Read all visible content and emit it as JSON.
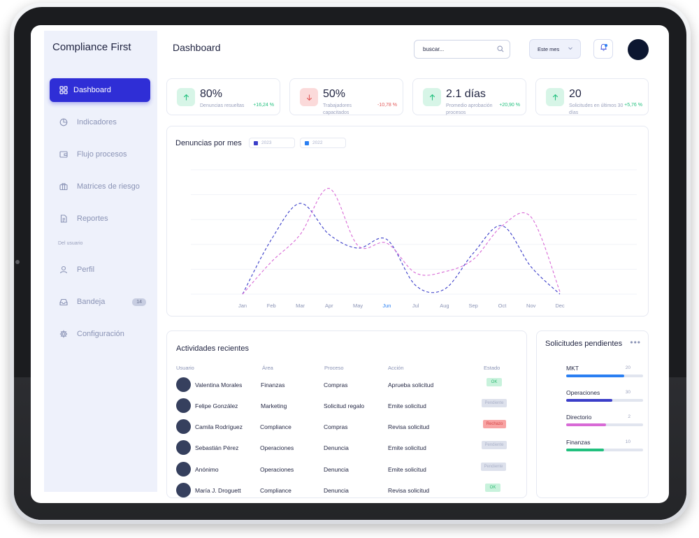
{
  "brand": "Compliance First",
  "colors": {
    "accent": "#2f2ed6",
    "series_2023": "#3b3ec9",
    "series_2022": "#d86ad6",
    "positive": "#22c07e",
    "negative": "#e25a5a"
  },
  "sidebar": {
    "items": [
      {
        "label": "Dashboard",
        "icon": "grid-icon"
      },
      {
        "label": "Indicadores",
        "icon": "pie-chart-icon"
      },
      {
        "label": "Flujo procesos",
        "icon": "wallet-icon"
      },
      {
        "label": "Matrices de riesgo",
        "icon": "briefcase-icon"
      },
      {
        "label": "Reportes",
        "icon": "document-icon"
      }
    ],
    "section_label": "Del usuario",
    "user_items": [
      {
        "label": "Perfil",
        "icon": "user-icon"
      },
      {
        "label": "Bandeja",
        "icon": "inbox-icon",
        "badge": "14"
      },
      {
        "label": "Configuración",
        "icon": "gear-icon"
      }
    ]
  },
  "header": {
    "title": "Dashboard",
    "search_placeholder": "buscar...",
    "period": "Este mes"
  },
  "stats": [
    {
      "value": "80%",
      "label": "Denuncias resueltas",
      "delta": "+16,24 %",
      "trend": "up"
    },
    {
      "value": "50%",
      "label": "Trabajadores capacitados",
      "delta": "-10,78 %",
      "trend": "down"
    },
    {
      "value": "2.1 días",
      "label": "Promedio aprobación procesos",
      "delta": "+20,90 %",
      "trend": "up"
    },
    {
      "value": "20",
      "label": "Solicitudes en últimos 30 días",
      "delta": "+5,76 %",
      "trend": "up"
    }
  ],
  "chart_data": {
    "type": "line",
    "title": "Denuncias por mes",
    "categories": [
      "Jan",
      "Feb",
      "Mar",
      "Apr",
      "May",
      "Jun",
      "Jul",
      "Aug",
      "Sep",
      "Oct",
      "Nov",
      "Dec"
    ],
    "highlight_category": "Jun",
    "series": [
      {
        "name": "2023",
        "values": [
          0,
          44,
          73,
          48,
          37,
          44,
          7,
          4,
          33,
          55,
          22,
          0
        ]
      },
      {
        "name": "2022",
        "values": [
          0,
          26,
          48,
          85,
          39,
          41,
          17,
          18,
          28,
          55,
          62,
          2
        ]
      }
    ],
    "grid": true,
    "legend": "top-left"
  },
  "activities": {
    "title": "Actividades recientes",
    "columns": [
      "Usuario",
      "Área",
      "Proceso",
      "Acción",
      "Estado"
    ],
    "rows": [
      {
        "user": "Valentina Morales",
        "area": "Finanzas",
        "process": "Compras",
        "action": "Aprueba solicitud",
        "status": "OK",
        "status_type": "ok"
      },
      {
        "user": "Felipe González",
        "area": "Marketing",
        "process": "Solicitud regalo",
        "action": "Emite solicitud",
        "status": "Pendiente",
        "status_type": "pend"
      },
      {
        "user": "Camila Rodríguez",
        "area": "Compliance",
        "process": "Compras",
        "action": "Revisa solicitud",
        "status": "Rechazo",
        "status_type": "rech"
      },
      {
        "user": "Sebastián Pérez",
        "area": "Operaciones",
        "process": "Denuncia",
        "action": "Emite solicitud",
        "status": "Pendiente",
        "status_type": "pend"
      },
      {
        "user": "Anónimo",
        "area": "Operaciones",
        "process": "Denuncia",
        "action": "Emite solicitud",
        "status": "Pendiente",
        "status_type": "pend"
      },
      {
        "user": "María J. Droguett",
        "area": "Compliance",
        "process": "Denuncia",
        "action": "Revisa solicitud",
        "status": "OK",
        "status_type": "ok"
      }
    ]
  },
  "pending": {
    "title": "Solicitudes pendientes",
    "items": [
      {
        "label": "MKT",
        "count": "20",
        "fraction": 0.75,
        "color": "#2a7ff2"
      },
      {
        "label": "Operaciones",
        "count": "30",
        "fraction": 0.6,
        "color": "#3b3ec9"
      },
      {
        "label": "Directorio",
        "count": "2",
        "fraction": 0.52,
        "color": "#d86ad6"
      },
      {
        "label": "Finanzas",
        "count": "10",
        "fraction": 0.49,
        "color": "#22c07e"
      }
    ]
  }
}
